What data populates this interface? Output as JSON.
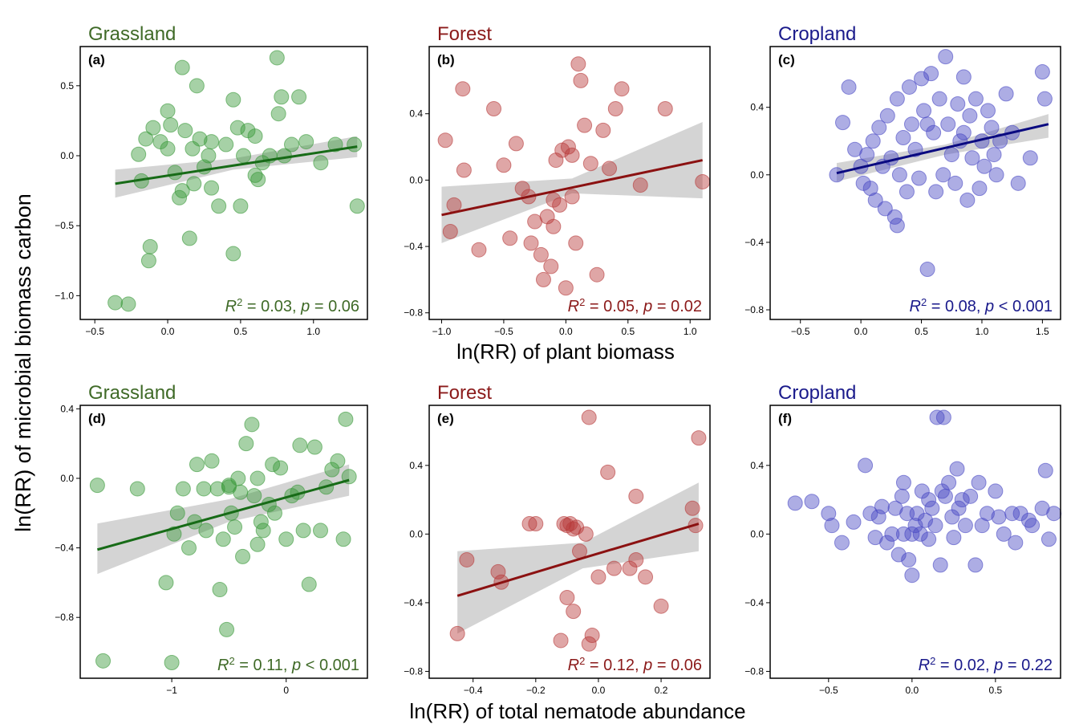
{
  "y_label": "ln(RR) of microbial biomass carbon",
  "x_label_top": "ln(RR) of plant biomass",
  "x_label_bottom": "ln(RR) of total nematode abundance",
  "chart_data": [
    {
      "type": "scatter",
      "title": "Grassland",
      "panel_label": "(a)",
      "annotation": [
        "R",
        "2",
        " = 0.03,  ",
        "p",
        " = 0.06"
      ],
      "color": "#3a9a3a",
      "fit_color": "#176b17",
      "title_color": "#3f6a27",
      "xlim": [
        -0.6,
        1.37
      ],
      "ylim": [
        -1.17,
        0.78
      ],
      "xticks": [
        {
          "value": -0.5,
          "label": "−0.5"
        },
        {
          "value": 0,
          "label": "0.0"
        },
        0.5,
        {
          "value": 1,
          "label": "1.0"
        }
      ],
      "yticks": [
        0.5,
        {
          "value": 0,
          "label": "0.0"
        },
        {
          "value": -0.5,
          "label": "−0.5"
        },
        {
          "value": -1,
          "label": "−1.0"
        }
      ],
      "x": [
        -0.36,
        -0.27,
        -0.12,
        -0.13,
        -0.2,
        -0.15,
        -0.1,
        -0.05,
        0.0,
        0.02,
        0.05,
        0.08,
        0.1,
        0.12,
        0.15,
        0.18,
        0.2,
        0.22,
        0.25,
        0.28,
        0.3,
        0.35,
        0.4,
        0.45,
        0.48,
        0.5,
        0.52,
        0.55,
        0.6,
        0.62,
        0.65,
        0.7,
        0.75,
        0.76,
        0.78,
        0.8,
        0.85,
        0.9,
        0.95,
        1.05,
        1.15,
        1.28,
        1.3,
        0.17,
        0.1,
        0.0,
        -0.18,
        0.45,
        0.3,
        0.6
      ],
      "y": [
        -1.05,
        -1.06,
        -0.65,
        -0.75,
        0.01,
        0.12,
        0.2,
        0.1,
        0.32,
        0.22,
        -0.12,
        -0.3,
        0.63,
        0.18,
        -0.59,
        -0.2,
        0.5,
        0.12,
        -0.08,
        0.0,
        0.1,
        -0.36,
        0.08,
        -0.7,
        0.2,
        -0.36,
        0.0,
        0.18,
        0.14,
        -0.17,
        -0.05,
        0.0,
        0.7,
        0.3,
        0.42,
        0.0,
        0.08,
        0.42,
        0.1,
        -0.05,
        0.08,
        0.08,
        -0.36,
        0.05,
        -0.25,
        0.05,
        -0.18,
        0.4,
        -0.23,
        -0.14
      ],
      "fit": {
        "x": [
          -0.36,
          0.45,
          1.3
        ],
        "y": [
          -0.2,
          -0.07,
          0.065
        ],
        "ci_lower": [
          -0.3,
          -0.1,
          -0.01
        ],
        "ci_upper": [
          -0.1,
          -0.02,
          0.14
        ]
      }
    },
    {
      "type": "scatter",
      "title": "Forest",
      "panel_label": "(b)",
      "annotation": [
        "R",
        "2",
        " = 0.05,  ",
        "p",
        " = 0.02"
      ],
      "color": "#b83a3a",
      "fit_color": "#8b1111",
      "title_color": "#8b1a1a",
      "xlim": [
        -1.1,
        1.16
      ],
      "ylim": [
        -0.84,
        0.805
      ],
      "xticks": [
        {
          "value": -1,
          "label": "−1.0"
        },
        {
          "value": -0.5,
          "label": "−0.5"
        },
        {
          "value": 0,
          "label": "0.0"
        },
        0.5,
        {
          "value": 1,
          "label": "1.0"
        }
      ],
      "yticks": [
        0.4,
        {
          "value": 0,
          "label": "0.0"
        },
        {
          "value": -0.4,
          "label": "−0.4"
        },
        {
          "value": -0.8,
          "label": "−0.8"
        }
      ],
      "x": [
        -0.97,
        -0.93,
        -0.9,
        -0.83,
        -0.82,
        -0.7,
        -0.58,
        -0.5,
        -0.45,
        -0.4,
        -0.35,
        -0.3,
        -0.28,
        -0.25,
        -0.2,
        -0.18,
        -0.15,
        -0.12,
        -0.1,
        -0.08,
        -0.05,
        -0.03,
        0.0,
        0.02,
        0.05,
        0.08,
        0.1,
        0.12,
        0.15,
        0.2,
        0.25,
        0.3,
        0.35,
        0.4,
        0.45,
        0.6,
        0.8,
        1.1,
        -0.1,
        0.05
      ],
      "y": [
        0.24,
        -0.31,
        -0.15,
        0.55,
        0.06,
        -0.42,
        0.43,
        0.09,
        -0.35,
        0.22,
        -0.05,
        -0.1,
        -0.38,
        -0.25,
        -0.45,
        -0.6,
        -0.22,
        -0.52,
        -0.28,
        0.12,
        -0.15,
        0.18,
        -0.65,
        0.2,
        -0.1,
        -0.38,
        0.7,
        0.6,
        0.33,
        0.1,
        -0.57,
        0.3,
        0.07,
        0.43,
        0.55,
        -0.03,
        0.43,
        -0.01,
        -0.12,
        0.15
      ],
      "fit": {
        "x": [
          -1.0,
          0.05,
          1.1
        ],
        "y": [
          -0.21,
          -0.045,
          0.12
        ],
        "ci_lower": [
          -0.38,
          -0.08,
          -0.11
        ],
        "ci_upper": [
          -0.04,
          0.01,
          0.35
        ]
      }
    },
    {
      "type": "scatter",
      "title": "Cropland",
      "panel_label": "(c)",
      "annotation": [
        "R",
        "2",
        " = 0.08,  ",
        "p",
        " < 0.001"
      ],
      "color": "#4a4ac4",
      "fit_color": "#0a0a80",
      "title_color": "#1a1a8b",
      "xlim": [
        -0.75,
        1.65
      ],
      "ylim": [
        -0.857,
        0.76
      ],
      "xticks": [
        {
          "value": -0.5,
          "label": "−0.5"
        },
        {
          "value": 0,
          "label": "0.0"
        },
        0.5,
        {
          "value": 1,
          "label": "1.0"
        },
        1.5
      ],
      "yticks": [
        0.4,
        {
          "value": 0,
          "label": "0.0"
        },
        {
          "value": -0.4,
          "label": "−0.4"
        },
        {
          "value": -0.8,
          "label": "−0.8"
        }
      ],
      "x": [
        -0.2,
        -0.15,
        -0.1,
        -0.05,
        0.0,
        0.02,
        0.05,
        0.08,
        0.1,
        0.12,
        0.15,
        0.18,
        0.2,
        0.22,
        0.25,
        0.28,
        0.3,
        0.32,
        0.35,
        0.38,
        0.4,
        0.42,
        0.45,
        0.48,
        0.5,
        0.52,
        0.55,
        0.58,
        0.6,
        0.62,
        0.65,
        0.68,
        0.7,
        0.72,
        0.75,
        0.78,
        0.8,
        0.82,
        0.85,
        0.88,
        0.9,
        0.92,
        0.95,
        0.98,
        1.0,
        1.02,
        1.05,
        1.08,
        1.1,
        1.12,
        1.15,
        1.2,
        1.25,
        1.3,
        1.4,
        1.5,
        1.52,
        0.55,
        0.3,
        0.85
      ],
      "y": [
        0.0,
        0.31,
        0.52,
        0.15,
        0.05,
        -0.05,
        0.12,
        -0.08,
        0.2,
        -0.15,
        0.28,
        0.05,
        -0.2,
        0.35,
        0.1,
        -0.25,
        0.45,
        0.0,
        0.22,
        -0.1,
        0.52,
        0.3,
        0.15,
        -0.02,
        0.57,
        0.38,
        -0.56,
        0.6,
        0.25,
        -0.1,
        0.45,
        0.0,
        0.7,
        0.3,
        0.12,
        -0.05,
        0.42,
        0.2,
        0.58,
        -0.15,
        0.35,
        0.1,
        0.45,
        -0.08,
        0.2,
        0.05,
        0.38,
        0.28,
        0.12,
        0.0,
        0.2,
        0.48,
        0.25,
        -0.05,
        0.1,
        0.61,
        0.45,
        0.3,
        -0.3,
        0.25
      ],
      "fit": {
        "x": [
          -0.2,
          0.7,
          1.55
        ],
        "y": [
          0.01,
          0.16,
          0.3
        ],
        "ci_lower": [
          -0.04,
          0.12,
          0.22
        ],
        "ci_upper": [
          0.07,
          0.18,
          0.36
        ]
      }
    },
    {
      "type": "scatter",
      "title": "Grassland",
      "panel_label": "(d)",
      "annotation": [
        "R",
        "2",
        " = 0.11,  ",
        "p",
        " < 0.001"
      ],
      "color": "#3a9a3a",
      "fit_color": "#176b17",
      "title_color": "#3f6a27",
      "xlim": [
        -1.8,
        0.71
      ],
      "ylim": [
        -1.15,
        0.42
      ],
      "xticks": [
        {
          "value": -1,
          "label": "−1"
        },
        0
      ],
      "yticks": [
        0.4,
        {
          "value": 0,
          "label": "0.0"
        },
        {
          "value": -0.4,
          "label": "−0.4"
        },
        {
          "value": -0.8,
          "label": "−0.8"
        }
      ],
      "x": [
        -1.65,
        -1.6,
        -1.3,
        -1.05,
        -1.0,
        -0.98,
        -0.95,
        -0.9,
        -0.85,
        -0.8,
        -0.78,
        -0.72,
        -0.7,
        -0.65,
        -0.6,
        -0.58,
        -0.55,
        -0.52,
        -0.5,
        -0.48,
        -0.45,
        -0.42,
        -0.4,
        -0.38,
        -0.35,
        -0.3,
        -0.28,
        -0.25,
        -0.22,
        -0.2,
        -0.15,
        -0.12,
        -0.1,
        -0.05,
        0.0,
        0.05,
        0.1,
        0.12,
        0.15,
        0.2,
        0.25,
        0.3,
        0.35,
        0.4,
        0.45,
        0.5,
        0.52,
        0.55,
        -0.25,
        -0.5
      ],
      "y": [
        -0.04,
        -1.05,
        -0.06,
        -0.6,
        -1.06,
        -0.32,
        -0.2,
        -0.06,
        -0.4,
        -0.25,
        0.08,
        -0.06,
        -0.3,
        0.1,
        -0.06,
        -0.64,
        -0.35,
        -0.87,
        -0.05,
        -0.2,
        -0.28,
        0.0,
        -0.08,
        -0.45,
        0.2,
        0.31,
        -0.1,
        0.0,
        -0.25,
        -0.3,
        -0.15,
        0.08,
        -0.2,
        0.06,
        -0.35,
        -0.1,
        -0.08,
        0.19,
        -0.3,
        -0.61,
        0.18,
        -0.3,
        -0.05,
        0.05,
        0.1,
        -0.35,
        0.34,
        0.01,
        -0.38,
        -0.04
      ],
      "fit": {
        "x": [
          -1.65,
          -0.5,
          0.55
        ],
        "y": [
          -0.41,
          -0.2,
          -0.01
        ],
        "ci_lower": [
          -0.55,
          -0.25,
          -0.1
        ],
        "ci_upper": [
          -0.26,
          -0.12,
          0.08
        ]
      }
    },
    {
      "type": "scatter",
      "title": "Forest",
      "panel_label": "(e)",
      "annotation": [
        "R",
        "2",
        " = 0.12,  ",
        "p",
        " = 0.06"
      ],
      "color": "#b83a3a",
      "fit_color": "#8b1111",
      "title_color": "#8b1a1a",
      "xlim": [
        -0.54,
        0.356
      ],
      "ylim": [
        -0.84,
        0.75
      ],
      "xticks": [
        {
          "value": -0.4,
          "label": "−0.4"
        },
        {
          "value": -0.2,
          "label": "−0.2"
        },
        {
          "value": 0,
          "label": "0.0"
        },
        0.2
      ],
      "yticks": [
        0.4,
        {
          "value": 0,
          "label": "0.0"
        },
        {
          "value": -0.4,
          "label": "−0.4"
        },
        {
          "value": -0.8,
          "label": "−0.8"
        }
      ],
      "x": [
        -0.45,
        -0.42,
        -0.32,
        -0.31,
        -0.22,
        -0.2,
        -0.12,
        -0.1,
        -0.1,
        -0.09,
        -0.08,
        -0.07,
        -0.06,
        -0.04,
        -0.03,
        -0.03,
        -0.02,
        0.03,
        0.05,
        0.1,
        0.12,
        0.12,
        0.15,
        0.2,
        0.3,
        0.31,
        0.32,
        -0.11,
        -0.08,
        0.0
      ],
      "y": [
        -0.58,
        -0.15,
        -0.22,
        -0.28,
        0.06,
        0.06,
        -0.62,
        0.05,
        -0.37,
        0.06,
        -0.45,
        0.04,
        -0.1,
        0.0,
        -0.64,
        0.68,
        -0.59,
        0.36,
        -0.2,
        -0.2,
        0.22,
        -0.15,
        -0.25,
        -0.42,
        0.15,
        0.05,
        0.56,
        0.06,
        0.03,
        -0.25
      ],
      "fit": {
        "x": [
          -0.45,
          -0.05,
          0.32
        ],
        "y": [
          -0.36,
          -0.14,
          0.06
        ],
        "ci_lower": [
          -0.58,
          -0.2,
          -0.1
        ],
        "ci_upper": [
          -0.1,
          -0.05,
          0.3
        ]
      }
    },
    {
      "type": "scatter",
      "title": "Cropland",
      "panel_label": "(f)",
      "annotation": [
        "R",
        "2",
        " = 0.02,  ",
        "p",
        " = 0.22"
      ],
      "color": "#4a4ac4",
      "fit_color": "#0a0a80",
      "title_color": "#1a1a8b",
      "xlim": [
        -0.85,
        0.89
      ],
      "ylim": [
        -0.84,
        0.75
      ],
      "xticks": [
        {
          "value": -0.5,
          "label": "−0.5"
        },
        {
          "value": 0,
          "label": "0.0"
        },
        0.5
      ],
      "yticks": [
        0.4,
        {
          "value": 0,
          "label": "0.0"
        },
        {
          "value": -0.4,
          "label": "−0.4"
        },
        {
          "value": -0.8,
          "label": "−0.8"
        }
      ],
      "x": [
        -0.7,
        -0.6,
        -0.5,
        -0.48,
        -0.42,
        -0.35,
        -0.28,
        -0.25,
        -0.22,
        -0.2,
        -0.18,
        -0.15,
        -0.12,
        -0.1,
        -0.08,
        -0.06,
        -0.05,
        -0.03,
        -0.02,
        0.0,
        0.02,
        0.03,
        0.05,
        0.06,
        0.08,
        0.1,
        0.12,
        0.14,
        0.15,
        0.17,
        0.2,
        0.22,
        0.24,
        0.25,
        0.27,
        0.3,
        0.32,
        0.35,
        0.38,
        0.4,
        0.42,
        0.45,
        0.5,
        0.52,
        0.55,
        0.6,
        0.62,
        0.65,
        0.7,
        0.72,
        0.78,
        0.8,
        0.82,
        0.85,
        0.19,
        0.18,
        -0.05,
        0.0,
        0.1,
        0.28
      ],
      "y": [
        0.18,
        0.19,
        0.12,
        0.05,
        -0.05,
        0.07,
        0.4,
        0.12,
        -0.02,
        0.1,
        0.16,
        -0.05,
        0.0,
        0.15,
        -0.12,
        0.22,
        0.3,
        0.12,
        -0.15,
        -0.24,
        0.05,
        0.12,
        0.0,
        0.25,
        0.08,
        -0.03,
        0.15,
        0.05,
        0.68,
        -0.18,
        0.22,
        0.3,
        0.1,
        -0.02,
        0.38,
        0.2,
        0.05,
        0.22,
        -0.18,
        0.3,
        0.05,
        0.12,
        0.25,
        0.1,
        0.0,
        0.12,
        -0.05,
        0.12,
        0.08,
        0.05,
        0.15,
        0.37,
        -0.03,
        0.12,
        0.68,
        0.25,
        0.0,
        0.0,
        0.2,
        0.15
      ]
    }
  ]
}
